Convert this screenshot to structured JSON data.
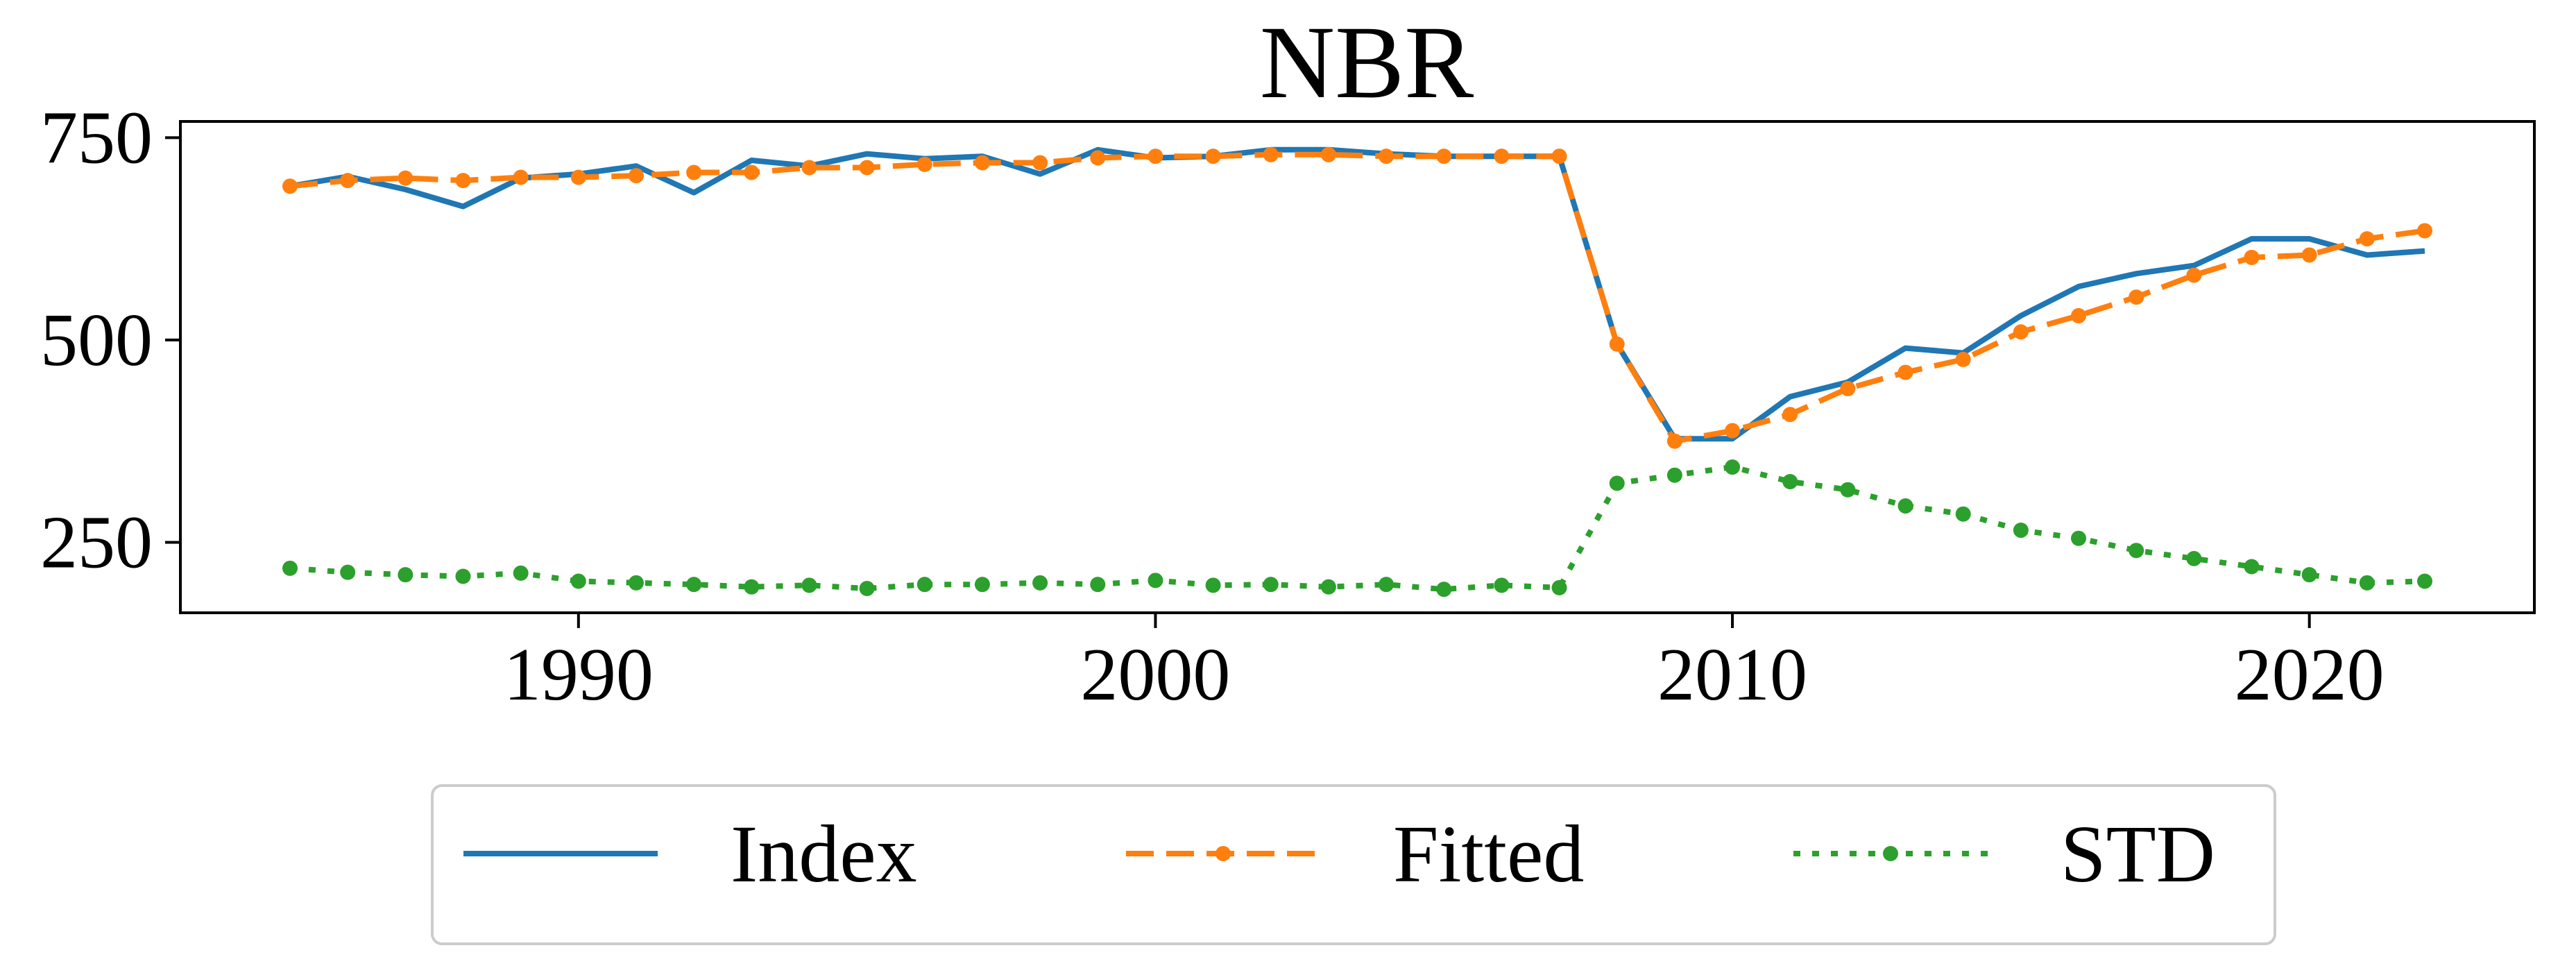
{
  "chart_data": {
    "type": "line",
    "title": "NBR",
    "xlabel": "",
    "ylabel": "",
    "xlim": [
      1983.1,
      2023.9
    ],
    "ylim": [
      163,
      770
    ],
    "xticks": [
      1990,
      2000,
      2010,
      2020
    ],
    "yticks": [
      250,
      500,
      750
    ],
    "grid": false,
    "legend_position": "bottom-center",
    "x": [
      1985,
      1986,
      1987,
      1988,
      1989,
      1990,
      1991,
      1992,
      1993,
      1994,
      1995,
      1996,
      1997,
      1998,
      1999,
      2000,
      2001,
      2002,
      2003,
      2004,
      2005,
      2006,
      2007,
      2008,
      2009,
      2010,
      2011,
      2012,
      2013,
      2014,
      2015,
      2016,
      2017,
      2018,
      2019,
      2020,
      2021,
      2022
    ],
    "series": [
      {
        "name": "Index",
        "color": "#1f77b4",
        "style": "solid",
        "marker": "none",
        "values": [
          690,
          702,
          686,
          665,
          700,
          705,
          715,
          682,
          722,
          715,
          730,
          724,
          727,
          705,
          735,
          725,
          727,
          735,
          735,
          730,
          727,
          727,
          727,
          495,
          378,
          378,
          430,
          448,
          490,
          484,
          530,
          566,
          582,
          592,
          625,
          625,
          605,
          610
        ]
      },
      {
        "name": "Fitted",
        "color": "#ff7f0e",
        "style": "dashed",
        "marker": "circle",
        "values": [
          690,
          697,
          700,
          697,
          701,
          701,
          703,
          707,
          707,
          713,
          713,
          717,
          719,
          719,
          725,
          727,
          727,
          729,
          729,
          727,
          727,
          727,
          727,
          495,
          375,
          388,
          408,
          440,
          460,
          476,
          510,
          530,
          553,
          580,
          602,
          605,
          625,
          635
        ]
      },
      {
        "name": "STD",
        "color": "#2ca02c",
        "style": "dotted",
        "marker": "circle",
        "values": [
          218,
          213,
          210,
          208,
          212,
          202,
          200,
          198,
          195,
          197,
          193,
          198,
          198,
          200,
          198,
          203,
          197,
          198,
          195,
          198,
          192,
          197,
          194,
          323,
          333,
          343,
          325,
          315,
          295,
          285,
          265,
          255,
          240,
          230,
          220,
          210,
          200,
          202
        ]
      }
    ]
  }
}
